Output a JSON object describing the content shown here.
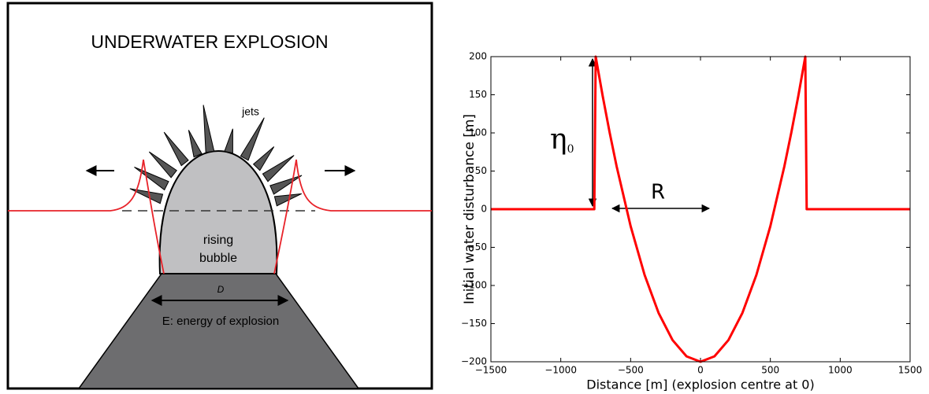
{
  "diagram": {
    "title": "UNDERWATER EXPLOSION",
    "jets_label": "jets",
    "bubble_label": [
      "rising",
      "bubble"
    ],
    "diameter_label": "D",
    "energy_label": "E: energy of explosion"
  },
  "chart_data": {
    "type": "line",
    "color": "#ff0000",
    "x": [
      -1500,
      -760,
      -750,
      -700,
      -650,
      -600,
      -500,
      -400,
      -300,
      -200,
      -100,
      0,
      100,
      200,
      300,
      400,
      500,
      600,
      650,
      700,
      750,
      760,
      1500
    ],
    "values": [
      0,
      0,
      200,
      148.4,
      100.4,
      56,
      -22.2,
      -86.2,
      -136,
      -171.6,
      -192.9,
      -200,
      -192.9,
      -171.6,
      -136,
      -86.2,
      -22.2,
      56,
      100.4,
      148.4,
      200,
      0,
      0
    ],
    "xlim": [
      -1500,
      1500
    ],
    "ylim": [
      -200,
      200
    ],
    "xticks": [
      {
        "value": -1500,
        "label": "−1500"
      },
      {
        "value": -1000,
        "label": "−1000"
      },
      {
        "value": -500,
        "label": "−500"
      },
      0,
      500,
      1000,
      1500
    ],
    "yticks": [
      {
        "value": -200,
        "label": "−200"
      },
      {
        "value": -150,
        "label": "−150"
      },
      {
        "value": -100,
        "label": "−100"
      },
      {
        "value": -50,
        "label": "−50"
      },
      0,
      50,
      100,
      150,
      200
    ],
    "xlabel": "Distance [m] (explosion centre at 0)",
    "ylabel": "Initial water disturbance [m]",
    "grid": false,
    "annotations": [
      {
        "text": "η",
        "subscript": "0"
      },
      {
        "text": "R"
      }
    ]
  }
}
